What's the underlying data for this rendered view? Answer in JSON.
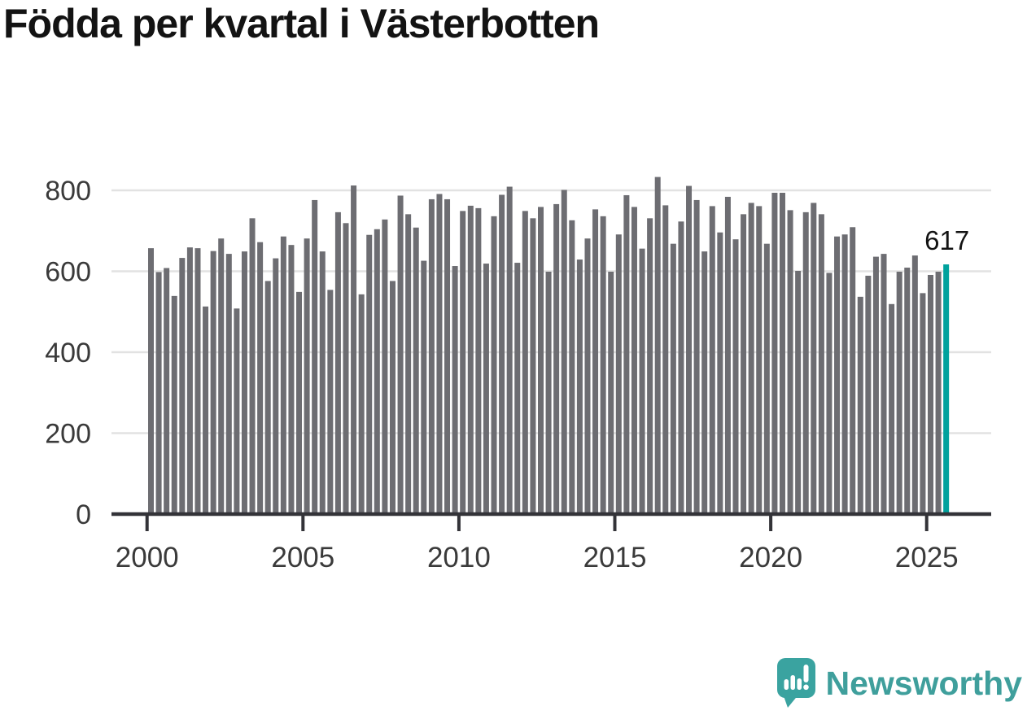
{
  "title": "Födda per kvartal i Västerbotten",
  "annotation": {
    "last_value_label": "617"
  },
  "logo": {
    "text": "Newsworthy",
    "icon": "newsworthy-speech-bubble-barchart-icon"
  },
  "colors": {
    "background": "#ffffff",
    "title": "#131313",
    "bar": "#6d6d72",
    "highlight": "#00a29d",
    "grid": "#e2e2e2",
    "axis": "#333338",
    "axis_label": "#3a3a3a",
    "annotation": "#131313",
    "logo_teal": "#3f9f9c",
    "logo_icon_teal": "#3aa3a0"
  },
  "chart_data": {
    "type": "bar",
    "title": "Födda per kvartal i Västerbotten",
    "xlabel": "",
    "ylabel": "",
    "ylim": [
      0,
      860
    ],
    "grid": "horizontal",
    "legend": "none",
    "y_ticks": [
      0,
      200,
      400,
      600,
      800
    ],
    "x_tick_years": [
      2000,
      2005,
      2010,
      2015,
      2020,
      2025
    ],
    "highlight_last": true,
    "last_value_label": "617",
    "categories": [
      "2000 Q1",
      "2000 Q2",
      "2000 Q3",
      "2000 Q4",
      "2001 Q1",
      "2001 Q2",
      "2001 Q3",
      "2001 Q4",
      "2002 Q1",
      "2002 Q2",
      "2002 Q3",
      "2002 Q4",
      "2003 Q1",
      "2003 Q2",
      "2003 Q3",
      "2003 Q4",
      "2004 Q1",
      "2004 Q2",
      "2004 Q3",
      "2004 Q4",
      "2005 Q1",
      "2005 Q2",
      "2005 Q3",
      "2005 Q4",
      "2006 Q1",
      "2006 Q2",
      "2006 Q3",
      "2006 Q4",
      "2007 Q1",
      "2007 Q2",
      "2007 Q3",
      "2007 Q4",
      "2008 Q1",
      "2008 Q2",
      "2008 Q3",
      "2008 Q4",
      "2009 Q1",
      "2009 Q2",
      "2009 Q3",
      "2009 Q4",
      "2010 Q1",
      "2010 Q2",
      "2010 Q3",
      "2010 Q4",
      "2011 Q1",
      "2011 Q2",
      "2011 Q3",
      "2011 Q4",
      "2012 Q1",
      "2012 Q2",
      "2012 Q3",
      "2012 Q4",
      "2013 Q1",
      "2013 Q2",
      "2013 Q3",
      "2013 Q4",
      "2014 Q1",
      "2014 Q2",
      "2014 Q3",
      "2014 Q4",
      "2015 Q1",
      "2015 Q2",
      "2015 Q3",
      "2015 Q4",
      "2016 Q1",
      "2016 Q2",
      "2016 Q3",
      "2016 Q4",
      "2017 Q1",
      "2017 Q2",
      "2017 Q3",
      "2017 Q4",
      "2018 Q1",
      "2018 Q2",
      "2018 Q3",
      "2018 Q4",
      "2019 Q1",
      "2019 Q2",
      "2019 Q3",
      "2019 Q4",
      "2020 Q1",
      "2020 Q2",
      "2020 Q3",
      "2020 Q4",
      "2021 Q1",
      "2021 Q2",
      "2021 Q3",
      "2021 Q4",
      "2022 Q1",
      "2022 Q2",
      "2022 Q3",
      "2022 Q4",
      "2023 Q1",
      "2023 Q2",
      "2023 Q3",
      "2023 Q4",
      "2024 Q1",
      "2024 Q2",
      "2024 Q3",
      "2024 Q4",
      "2025 Q1",
      "2025 Q2",
      "2025 Q3"
    ],
    "values": [
      657,
      598,
      608,
      539,
      633,
      659,
      657,
      513,
      650,
      681,
      643,
      508,
      649,
      731,
      672,
      576,
      632,
      686,
      665,
      549,
      681,
      776,
      649,
      554,
      746,
      719,
      812,
      543,
      690,
      704,
      728,
      576,
      787,
      741,
      708,
      626,
      778,
      791,
      778,
      613,
      749,
      762,
      756,
      619,
      736,
      789,
      809,
      621,
      749,
      731,
      759,
      599,
      766,
      801,
      726,
      629,
      681,
      753,
      736,
      599,
      691,
      788,
      759,
      656,
      731,
      833,
      763,
      668,
      723,
      811,
      776,
      649,
      761,
      696,
      784,
      679,
      741,
      769,
      761,
      668,
      794,
      794,
      751,
      601,
      746,
      769,
      741,
      596,
      686,
      691,
      709,
      537,
      589,
      636,
      643,
      519,
      599,
      609,
      639,
      546,
      591,
      599,
      617
    ]
  }
}
